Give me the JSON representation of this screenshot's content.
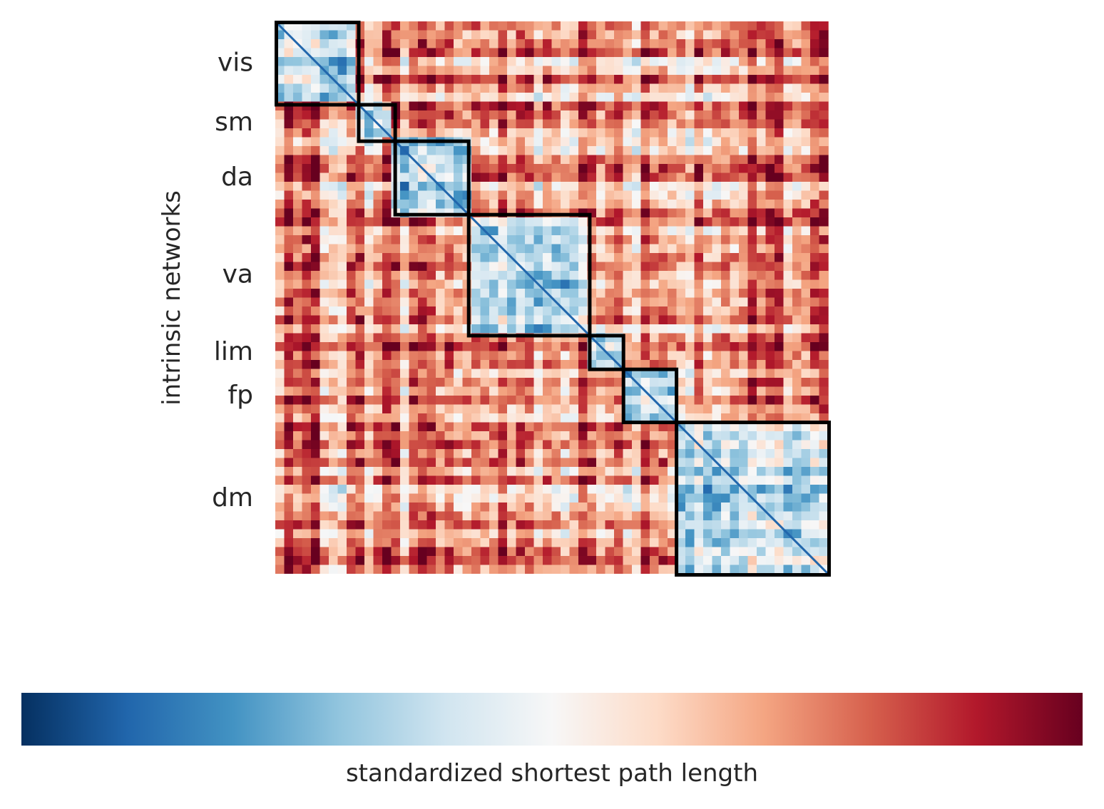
{
  "chart_data": [
    {
      "type": "heatmap",
      "title": "",
      "xlabel": "",
      "ylabel": "intrinsic networks",
      "networks": [
        {
          "label": "vis",
          "fraction": 0.149
        },
        {
          "label": "sm",
          "fraction": 0.066
        },
        {
          "label": "da",
          "fraction": 0.133
        },
        {
          "label": "va",
          "fraction": 0.219
        },
        {
          "label": "lim",
          "fraction": 0.061
        },
        {
          "label": "fp",
          "fraction": 0.096
        },
        {
          "label": "dm",
          "fraction": 0.276
        }
      ],
      "block_outline_color": "#000000",
      "grid": false
    },
    {
      "type": "colorbar",
      "label": "standardized shortest path length",
      "orientation": "horizontal",
      "colormap": "RdBu_r",
      "colors": [
        "#053061",
        "#2166ac",
        "#4393c3",
        "#92c5de",
        "#d1e5f0",
        "#f7f7f7",
        "#fddbc7",
        "#f4a582",
        "#d6604d",
        "#b2182b",
        "#67001f"
      ]
    }
  ]
}
